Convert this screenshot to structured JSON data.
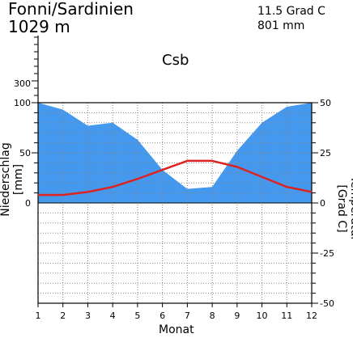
{
  "header": {
    "station": "Fonni/Sardinien",
    "elevation": "1029 m",
    "mean_temp": "11.5 Grad C",
    "annual_precip": "801 mm",
    "climate_class": "Csb"
  },
  "chart_data": {
    "type": "area",
    "xlabel": "Monat",
    "ylabel_left": "Niederschlag [mm]",
    "ylabel_right": "Temperatur [Grad C]",
    "x": [
      1,
      2,
      3,
      4,
      5,
      6,
      7,
      8,
      9,
      10,
      11,
      12
    ],
    "x_ticks": [
      "1",
      "2",
      "3",
      "4",
      "5",
      "6",
      "7",
      "8",
      "9",
      "10",
      "11",
      "12"
    ],
    "left_ticks": [
      "0",
      "50",
      "100",
      "300"
    ],
    "right_ticks": [
      "50",
      "25",
      "0",
      "-25",
      "-50"
    ],
    "temp_range": [
      -50,
      50
    ],
    "precip_range": [
      0,
      100
    ],
    "series": [
      {
        "name": "Niederschlag",
        "values": [
          100,
          93,
          77,
          80,
          63,
          33,
          14,
          16,
          52,
          80,
          96,
          100
        ],
        "color": "#4499ee"
      },
      {
        "name": "Temperatur",
        "values": [
          4,
          4,
          5.5,
          8,
          12,
          16.5,
          21,
          21,
          18,
          13,
          8,
          5.5
        ],
        "color": "#dd2222"
      }
    ],
    "grid": true
  }
}
